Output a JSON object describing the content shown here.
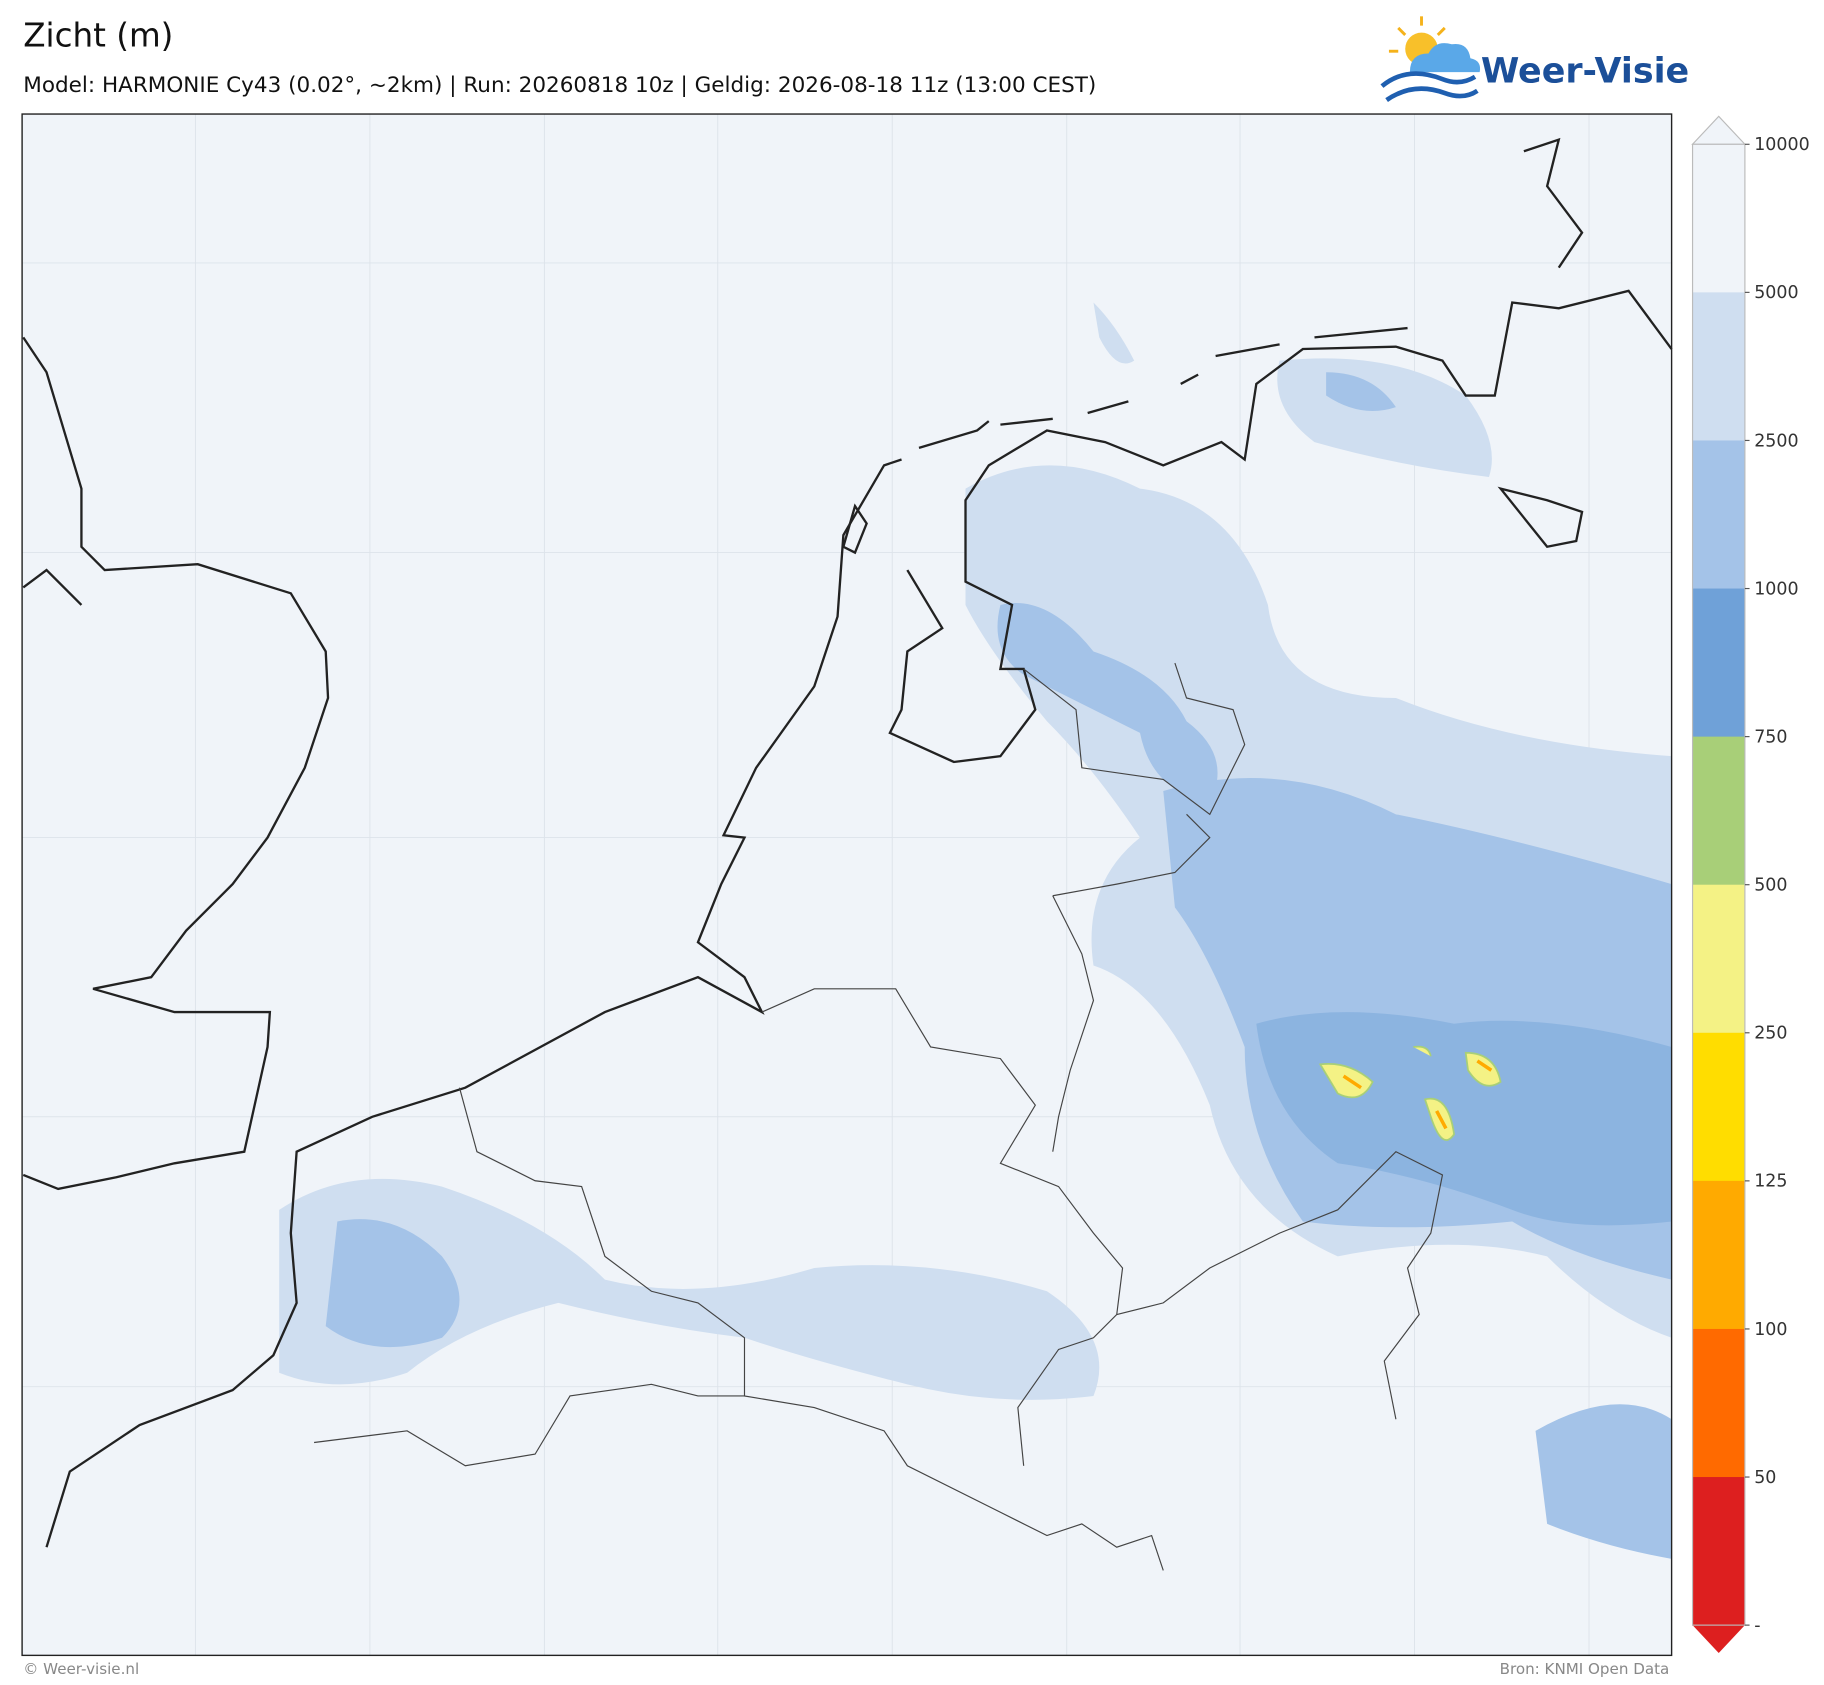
{
  "header": {
    "title": "Zicht (m)",
    "subtitle": "Model: HARMONIE Cy43 (0.02°, ~2km)  |  Run: 20260818 10z  |  Geldig: 2026-08-18 11z (13:00 CEST)"
  },
  "logo": {
    "text": "Weer-Visie"
  },
  "colorbar": {
    "tick_labels": [
      "10000",
      "5000",
      "2500",
      "1000",
      "750",
      "500",
      "250",
      "125",
      "100",
      "50",
      "-"
    ],
    "colors": [
      "#f0f4f9",
      "#cfdef0",
      "#a4c3e8",
      "#6fa1d8",
      "#a8cf78",
      "#f4f285",
      "#ffdd00",
      "#ffaa00",
      "#ff6a00",
      "#dd1f1f"
    ]
  },
  "footer": {
    "left": "© Weer-visie.nl",
    "right": "Bron: KNMI Open Data"
  }
}
